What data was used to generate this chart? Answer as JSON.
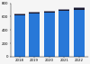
{
  "years": [
    "2018",
    "2019",
    "2020",
    "2021",
    "2022"
  ],
  "segments": {
    "blue": [
      620000,
      645000,
      655000,
      680000,
      700000
    ],
    "dark": [
      18000,
      20000,
      22000,
      24000,
      26000
    ],
    "gray": [
      6000,
      7000,
      7500,
      8000,
      8500
    ],
    "red": [
      4000,
      5000,
      5500,
      6000,
      7000
    ]
  },
  "colors": {
    "blue": "#2878d8",
    "dark": "#1a1a2e",
    "gray": "#888899",
    "red": "#cc2222"
  },
  "ylim": [
    0,
    800000
  ],
  "yticks": [
    0,
    200000,
    400000,
    600000,
    800000
  ],
  "ytick_labels": [
    "0",
    "200",
    "400",
    "600",
    "800"
  ],
  "background_color": "#f5f5f5"
}
